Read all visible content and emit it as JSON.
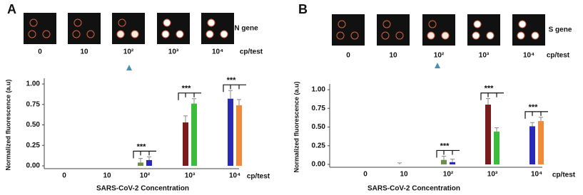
{
  "chart_data": [
    {
      "type": "bar",
      "panel": "A",
      "gene": "N gene",
      "unit": "cp/test",
      "categories": [
        "0",
        "10",
        "10²",
        "10³",
        "10⁴"
      ],
      "ylabel": "Normalized fluorescence (a.u)",
      "xlabel": "SARS-CoV-2 Concentration",
      "ylim": [
        0,
        1
      ],
      "yticks": [
        {
          "value": 0,
          "label": "0.00"
        },
        {
          "value": 0.25,
          "label": "0.25"
        },
        {
          "value": 0.5,
          "label": "0.50"
        },
        {
          "value": 0.75,
          "label": "0.75"
        },
        {
          "value": 1,
          "label": "1.00"
        }
      ],
      "series": [
        {
          "values": [
            null,
            null,
            0.04,
            0.53,
            0.82
          ],
          "errors": [
            null,
            null,
            0.05,
            0.08,
            0.1
          ],
          "colors": [
            null,
            null,
            "#6f8f4f",
            "#7a1c1c",
            "#2a2ab8"
          ]
        },
        {
          "values": [
            null,
            null,
            0.07,
            0.76,
            0.74
          ],
          "errors": [
            null,
            null,
            0.04,
            0.06,
            0.07
          ],
          "colors": [
            null,
            null,
            "#2a2ab8",
            "#3dbb3d",
            "#f28a3c"
          ]
        }
      ],
      "significance": [
        null,
        null,
        "***",
        "***",
        "***"
      ]
    },
    {
      "type": "bar",
      "panel": "B",
      "gene": "S gene",
      "unit": "cp/test",
      "categories": [
        "0",
        "10",
        "10²",
        "10³",
        "10⁴"
      ],
      "ylabel": "Normalized fluorescence (a.u)",
      "xlabel": "SARS-CoV-2 Concentration",
      "ylim": [
        0,
        1
      ],
      "yticks": [
        {
          "value": 0,
          "label": "0.00"
        },
        {
          "value": 0.25,
          "label": "0.25"
        },
        {
          "value": 0.5,
          "label": "0.50"
        },
        {
          "value": 0.75,
          "label": "0.75"
        },
        {
          "value": 1,
          "label": "1.00"
        }
      ],
      "series": [
        {
          "values": [
            null,
            0,
            0.06,
            0.8,
            0.51
          ],
          "errors": [
            null,
            0.02,
            0.05,
            0.08,
            0.05
          ],
          "colors": [
            null,
            "#c08a8a",
            "#6f8f4f",
            "#7a1c1c",
            "#2a2ab8"
          ]
        },
        {
          "values": [
            null,
            null,
            0.03,
            0.44,
            0.58
          ],
          "errors": [
            null,
            null,
            0.04,
            0.05,
            0.05
          ],
          "colors": [
            null,
            null,
            "#2a2ab8",
            "#3dbb3d",
            "#f28a3c"
          ]
        }
      ],
      "significance": [
        null,
        null,
        "***",
        "***",
        "***"
      ]
    }
  ]
}
